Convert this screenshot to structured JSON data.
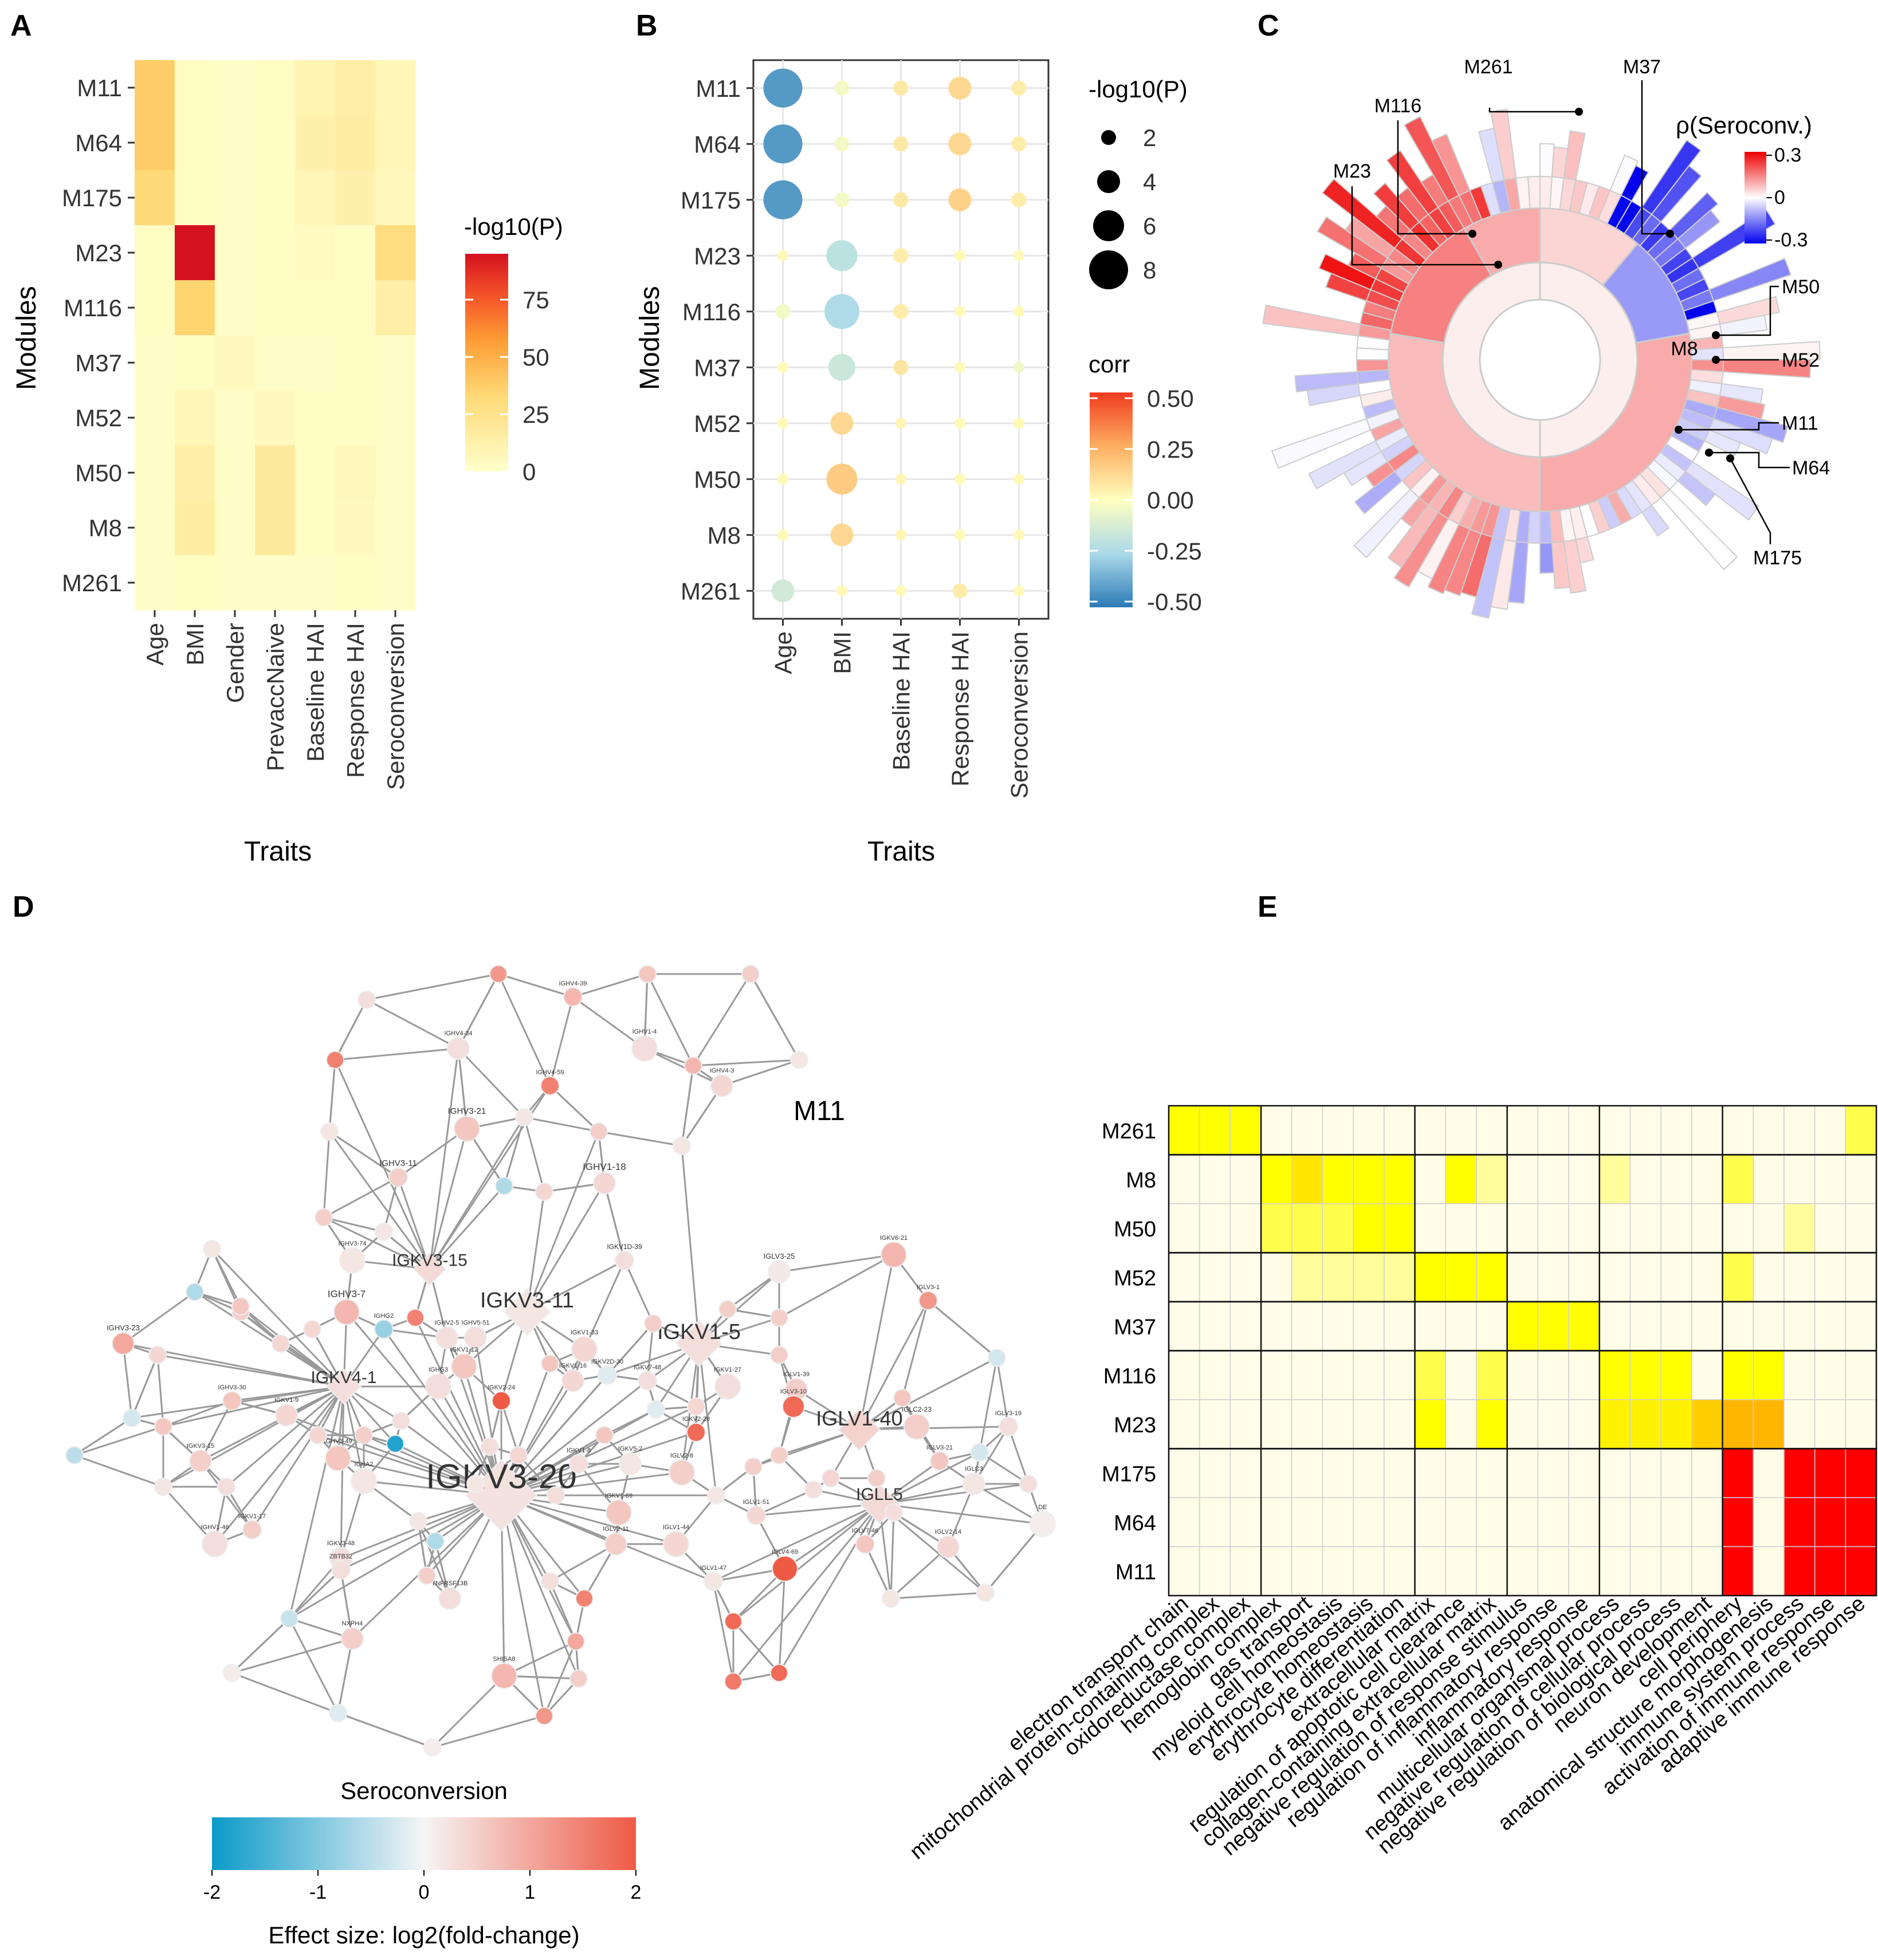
{
  "colors": {
    "heat_low": "#ffffcc",
    "heat_mid": "#fd9d34",
    "heat_high": "#d4111f",
    "corr_neg": "#2c7bb6",
    "corr_pos": "#d7191c",
    "sero_neg": "#2b8cbe",
    "sero_pos": "#e34a33"
  },
  "chart_data": [
    {
      "id": "A",
      "type": "heatmap",
      "panel_label": "A",
      "xlabel": "Traits",
      "ylabel": "Modules",
      "rows": [
        "M11",
        "M64",
        "M175",
        "M23",
        "M116",
        "M37",
        "M52",
        "M50",
        "M8",
        "M261"
      ],
      "cols": [
        "Age",
        "BMI",
        "Gender",
        "PrevaccNaive",
        "Baseline HAI",
        "Response HAI",
        "Seroconversion"
      ],
      "values": [
        [
          38,
          3,
          2,
          3,
          10,
          15,
          8
        ],
        [
          38,
          3,
          2,
          3,
          12,
          16,
          8
        ],
        [
          32,
          3,
          2,
          3,
          8,
          12,
          6
        ],
        [
          3,
          95,
          2,
          3,
          4,
          3,
          30
        ],
        [
          3,
          35,
          2,
          3,
          3,
          3,
          15
        ],
        [
          2,
          3,
          5,
          2,
          2,
          3,
          2
        ],
        [
          2,
          8,
          2,
          5,
          3,
          3,
          2
        ],
        [
          2,
          14,
          2,
          18,
          3,
          6,
          2
        ],
        [
          2,
          16,
          2,
          18,
          3,
          5,
          2
        ],
        [
          2,
          3,
          2,
          2,
          2,
          3,
          2
        ]
      ],
      "legend_title": "-log10(P)",
      "legend_ticks": [
        0,
        25,
        50,
        75
      ],
      "range": [
        0,
        95
      ]
    },
    {
      "id": "B",
      "type": "scatter",
      "panel_label": "B",
      "xlabel": "Traits",
      "ylabel": "Modules",
      "rows": [
        "M11",
        "M64",
        "M175",
        "M23",
        "M116",
        "M37",
        "M52",
        "M50",
        "M8",
        "M261"
      ],
      "cols": [
        "Age",
        "BMI",
        "Baseline HAI",
        "Response HAI",
        "Seroconversion"
      ],
      "size_values": [
        [
          8,
          2,
          2,
          4,
          2
        ],
        [
          8,
          2,
          2,
          4,
          2
        ],
        [
          8,
          2,
          2,
          4,
          2
        ],
        [
          1,
          6,
          2,
          1,
          1
        ],
        [
          2,
          7,
          2,
          1,
          1
        ],
        [
          1,
          5,
          2,
          1,
          1
        ],
        [
          1,
          4,
          1,
          1,
          1
        ],
        [
          1,
          6,
          1,
          1,
          1
        ],
        [
          1,
          4,
          1,
          1,
          1
        ],
        [
          4,
          1,
          1,
          2,
          1
        ]
      ],
      "corr_values": [
        [
          -0.42,
          -0.04,
          0.07,
          0.12,
          0.06
        ],
        [
          -0.42,
          -0.04,
          0.07,
          0.12,
          0.06
        ],
        [
          -0.42,
          -0.04,
          0.07,
          0.14,
          0.06
        ],
        [
          0.02,
          -0.2,
          0.06,
          0.02,
          0.02
        ],
        [
          -0.04,
          -0.24,
          0.06,
          0.02,
          0.02
        ],
        [
          0.02,
          -0.16,
          0.08,
          0.02,
          -0.05
        ],
        [
          0.02,
          0.12,
          0.03,
          0.02,
          0.02
        ],
        [
          0.02,
          0.16,
          0.03,
          0.02,
          0.02
        ],
        [
          0.02,
          0.12,
          0.03,
          0.02,
          0.02
        ],
        [
          -0.14,
          0.02,
          0.02,
          0.06,
          0.02
        ]
      ],
      "size_legend_title": "-log10(P)",
      "size_legend_ticks": [
        2,
        4,
        6,
        8
      ],
      "color_legend_title": "corr",
      "color_legend_ticks": [
        "0.50",
        "0.25",
        "0.00",
        "-0.25",
        "-0.50"
      ],
      "range": [
        -0.5,
        0.5
      ]
    },
    {
      "id": "C",
      "type": "sunburst",
      "panel_label": "C",
      "legend_title": "ρ(Seroconv.)",
      "legend_ticks": [
        "0.3",
        "0",
        "-0.3"
      ],
      "labels": [
        "M261",
        "M37",
        "M116",
        "M23",
        "M50",
        "M8",
        "M52",
        "M11",
        "M64",
        "M175"
      ],
      "range": [
        -0.3,
        0.3
      ]
    },
    {
      "id": "D",
      "type": "network",
      "panel_label": "D",
      "module_label": "M11",
      "hubs": [
        "IGKV3-20",
        "IGKV3-11",
        "IGKV1-5",
        "IGKV3-15",
        "IGKV4-1",
        "IGLV1-40",
        "IGLL5"
      ],
      "genes": [
        "IGHV4-39",
        "IGHV4-34",
        "IGHV1-4",
        "IGHV4-59",
        "IGHV4-3",
        "IGHV3-21",
        "IGHV3-11",
        "IGHV1-18",
        "IGHV3-74",
        "IGKV1D-39",
        "IGLV3-25",
        "IGKV6-21",
        "IGLV3-1",
        "IGHV3-23",
        "IGHV3-7",
        "IGHG2",
        "IGHV2-5",
        "IGKV1-33",
        "IGHV3-30",
        "IGHV5-51",
        "IGKV1-12",
        "IGKV2D-30",
        "IGLV1-39",
        "IGHG3",
        "IGKV2-24",
        "IGKV1-16",
        "IGKV1-27",
        "IGKV7-48",
        "IGLV3-10",
        "IGLC2-23",
        "IGLV3-19",
        "IGKV1-9",
        "IGHV3-49",
        "IGKV2-28",
        "IGKV3-15",
        "IGHA2",
        "IGKV1-8",
        "IGKV5-2",
        "IGLV2-8",
        "IGLV3-21",
        "IGLC3",
        "IGHV1-46",
        "IGKV1-17",
        "IGKV3-48",
        "IGKV1-69",
        "IGLV1-51",
        "IGLV2-11",
        "IGLV1-44",
        "IGLV7-46",
        "IGLV2-14",
        "DE",
        "ZBTB32",
        "TNFRSF13B",
        "IGLV4-69",
        "IGLV1-47",
        "NXPH4",
        "SHISA8"
      ],
      "legend_title": "Seroconversion",
      "legend_ticks": [
        "-2",
        "-1",
        "0",
        "1",
        "2"
      ],
      "legend_xlabel": "Effect size: log2(fold-change)",
      "range": [
        -2,
        2
      ]
    },
    {
      "id": "E",
      "type": "heatmap",
      "panel_label": "E",
      "rows": [
        "M261",
        "M8",
        "M50",
        "M52",
        "M37",
        "M116",
        "M23",
        "M175",
        "M64",
        "M11"
      ],
      "cols": [
        "electron transport chain",
        "mitochondrial protein-containing complex",
        "oxidoreductase complex",
        "hemoglobin complex",
        "gas transport",
        "myeloid cell homeostasis",
        "erythrocyte homeostasis",
        "erythrocyte differentiation",
        "extracellular matrix",
        "regulation of apoptotic cell clearance",
        "collagen-containing extracellular matrix",
        "negative regulation of response stimulus",
        "regulation of inflammatory response",
        "inflammatory response",
        "multicellular organismal process",
        "negative regulation of cellular process",
        "negative regulation of biological process",
        "neuron development",
        "cell periphery",
        "anatomical structure morphogenesis",
        "immune system process",
        "activation of immune response",
        "adaptive immune response"
      ],
      "values": [
        [
          3,
          3,
          3,
          0,
          0,
          0,
          0,
          0,
          0,
          0,
          0,
          0,
          0,
          0,
          0,
          0,
          0,
          0,
          0,
          0,
          0,
          0,
          2
        ],
        [
          0,
          0,
          0,
          3,
          4,
          3,
          3,
          3,
          0,
          3,
          1,
          0,
          0,
          0,
          1,
          0,
          0,
          0,
          2,
          0,
          0,
          0,
          0
        ],
        [
          0,
          0,
          0,
          2,
          2,
          2,
          3,
          3,
          0,
          0,
          0,
          0,
          0,
          0,
          0,
          0,
          0,
          0,
          0,
          0,
          1,
          0,
          0
        ],
        [
          0,
          0,
          0,
          0,
          1,
          1,
          1,
          1,
          3,
          3,
          3,
          0,
          0,
          0,
          0,
          0,
          0,
          0,
          2,
          0,
          0,
          0,
          0
        ],
        [
          0,
          0,
          0,
          0,
          0,
          0,
          0,
          0,
          0,
          0,
          0,
          3,
          3,
          3,
          0,
          0,
          0,
          0,
          0,
          0,
          0,
          0,
          0
        ],
        [
          0,
          0,
          0,
          0,
          0,
          0,
          0,
          0,
          2,
          0,
          2,
          0,
          0,
          0,
          3,
          3,
          3,
          0,
          3,
          3,
          0,
          0,
          0
        ],
        [
          0,
          0,
          0,
          0,
          0,
          0,
          0,
          0,
          3,
          0,
          3,
          0,
          0,
          0,
          3.5,
          3.5,
          3.5,
          5,
          6,
          6,
          0,
          0,
          0
        ],
        [
          0,
          0,
          0,
          0,
          0,
          0,
          0,
          0,
          0,
          0,
          0,
          0,
          0,
          0,
          0,
          0,
          0,
          0,
          10,
          0,
          10,
          10,
          10
        ],
        [
          0,
          0,
          0,
          0,
          0,
          0,
          0,
          0,
          0,
          0,
          0,
          0,
          0,
          0,
          0,
          0,
          0,
          0,
          10,
          0,
          10,
          10,
          10
        ],
        [
          0,
          0,
          0,
          0,
          0,
          0,
          0,
          0,
          0,
          0,
          0,
          0,
          0,
          0,
          0,
          0,
          0,
          0,
          10,
          0,
          10,
          10,
          10
        ]
      ],
      "range": [
        0,
        10
      ]
    }
  ]
}
